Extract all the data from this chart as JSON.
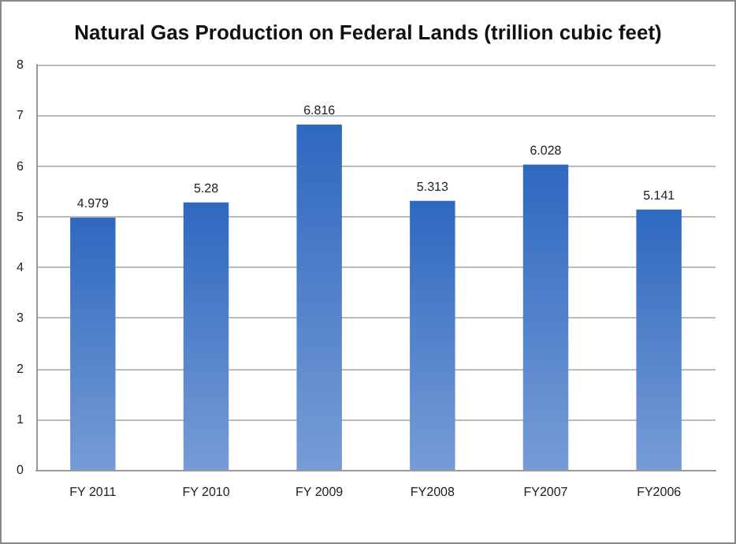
{
  "chart_data": {
    "type": "bar",
    "title": "Natural Gas Production on Federal Lands (trillion cubic feet)",
    "categories": [
      "FY 2011",
      "FY 2010",
      "FY 2009",
      "FY2008",
      "FY2007",
      "FY2006"
    ],
    "values": [
      4.979,
      5.28,
      6.816,
      5.313,
      6.028,
      5.141
    ],
    "color": "#2e68c0",
    "ylim": [
      0,
      8
    ],
    "yticks": [
      0,
      1,
      2,
      3,
      4,
      5,
      6,
      7,
      8
    ],
    "grid": "y",
    "data_labels": true
  }
}
